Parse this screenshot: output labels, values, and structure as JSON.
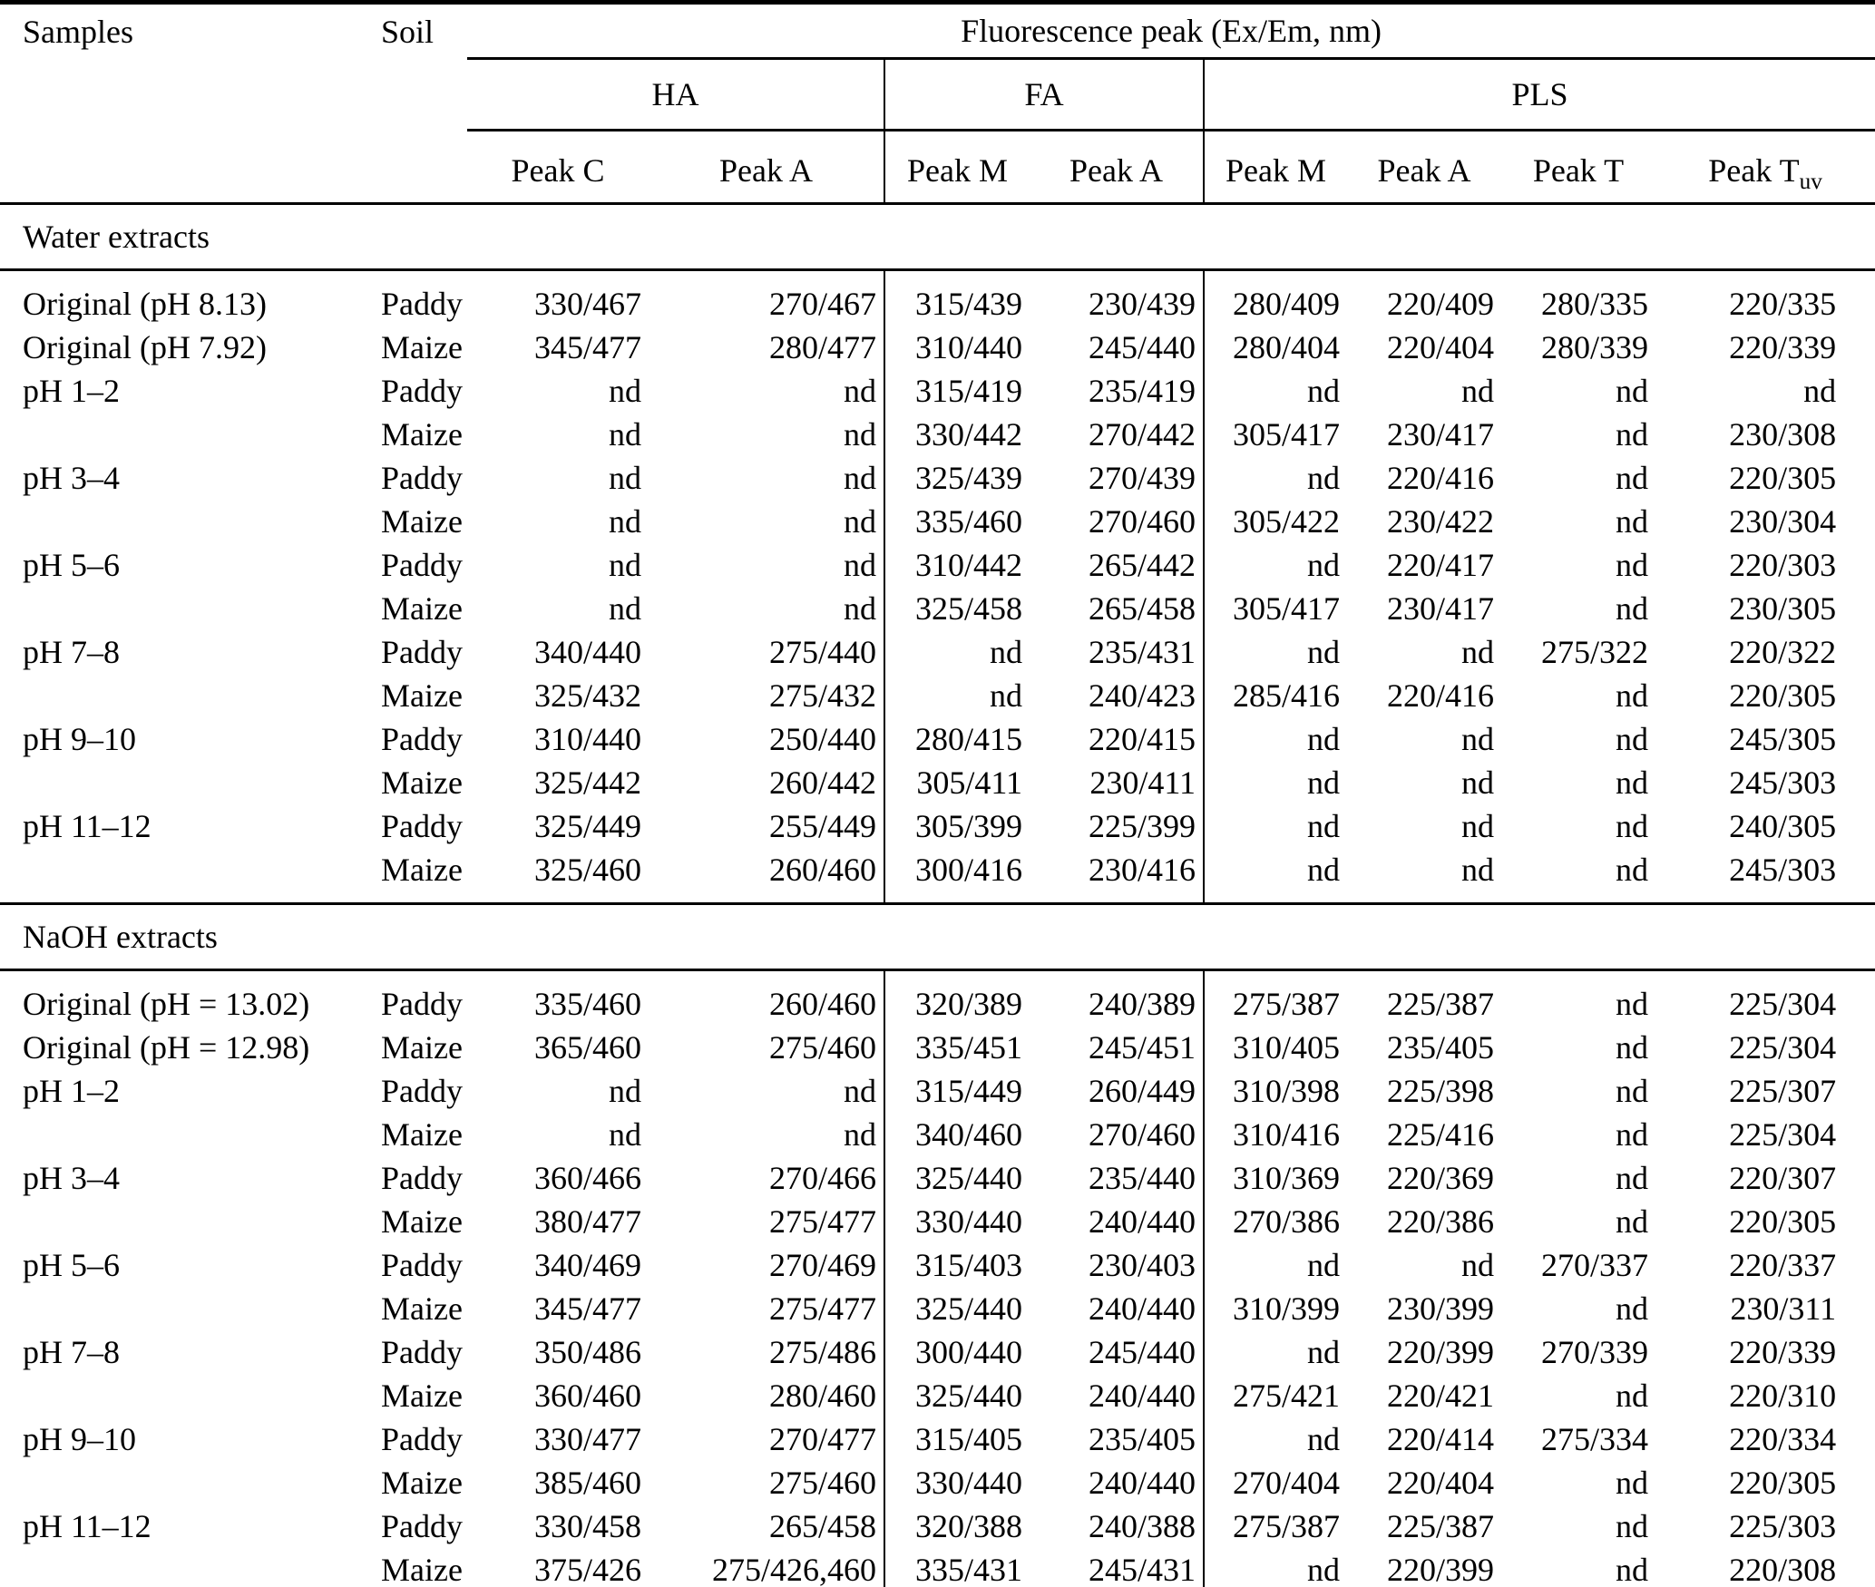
{
  "table": {
    "columns": {
      "samples": "Samples",
      "soil": "Soil",
      "fluorescence": "Fluorescence peak (Ex/Em, nm)"
    },
    "groups": [
      {
        "label": "HA"
      },
      {
        "label": "FA"
      },
      {
        "label": "PLS"
      }
    ],
    "peaks": [
      {
        "label": "Peak C",
        "sub": ""
      },
      {
        "label": "Peak A",
        "sub": ""
      },
      {
        "label": "Peak M",
        "sub": ""
      },
      {
        "label": "Peak A",
        "sub": ""
      },
      {
        "label": "Peak M",
        "sub": ""
      },
      {
        "label": "Peak A",
        "sub": ""
      },
      {
        "label": "Peak T",
        "sub": ""
      },
      {
        "label": "Peak T",
        "sub": "uv"
      }
    ],
    "not_detected_symbol": "nd",
    "text_color": "#000000",
    "background_color": "#ffffff",
    "sections": [
      {
        "label": "Water extracts",
        "rows": [
          {
            "sample": "Original (pH 8.13)",
            "soil": "Paddy",
            "values": [
              "330/467",
              "270/467",
              "315/439",
              "230/439",
              "280/409",
              "220/409",
              "280/335",
              "220/335"
            ]
          },
          {
            "sample": "Original (pH 7.92)",
            "soil": "Maize",
            "values": [
              "345/477",
              "280/477",
              "310/440",
              "245/440",
              "280/404",
              "220/404",
              "280/339",
              "220/339"
            ]
          },
          {
            "sample": "pH 1–2",
            "soil": "Paddy",
            "values": [
              "nd",
              "nd",
              "315/419",
              "235/419",
              "nd",
              "nd",
              "nd",
              "nd"
            ]
          },
          {
            "sample": "",
            "soil": "Maize",
            "values": [
              "nd",
              "nd",
              "330/442",
              "270/442",
              "305/417",
              "230/417",
              "nd",
              "230/308"
            ]
          },
          {
            "sample": "pH 3–4",
            "soil": "Paddy",
            "values": [
              "nd",
              "nd",
              "325/439",
              "270/439",
              "nd",
              "220/416",
              "nd",
              "220/305"
            ]
          },
          {
            "sample": "",
            "soil": "Maize",
            "values": [
              "nd",
              "nd",
              "335/460",
              "270/460",
              "305/422",
              "230/422",
              "nd",
              "230/304"
            ]
          },
          {
            "sample": "pH 5–6",
            "soil": "Paddy",
            "values": [
              "nd",
              "nd",
              "310/442",
              "265/442",
              "nd",
              "220/417",
              "nd",
              "220/303"
            ]
          },
          {
            "sample": "",
            "soil": "Maize",
            "values": [
              "nd",
              "nd",
              "325/458",
              "265/458",
              "305/417",
              "230/417",
              "nd",
              "230/305"
            ]
          },
          {
            "sample": "pH 7–8",
            "soil": "Paddy",
            "values": [
              "340/440",
              "275/440",
              "nd",
              "235/431",
              "nd",
              "nd",
              "275/322",
              "220/322"
            ]
          },
          {
            "sample": "",
            "soil": "Maize",
            "values": [
              "325/432",
              "275/432",
              "nd",
              "240/423",
              "285/416",
              "220/416",
              "nd",
              "220/305"
            ]
          },
          {
            "sample": "pH 9–10",
            "soil": "Paddy",
            "values": [
              "310/440",
              "250/440",
              "280/415",
              "220/415",
              "nd",
              "nd",
              "nd",
              "245/305"
            ]
          },
          {
            "sample": "",
            "soil": "Maize",
            "values": [
              "325/442",
              "260/442",
              "305/411",
              "230/411",
              "nd",
              "nd",
              "nd",
              "245/303"
            ]
          },
          {
            "sample": "pH 11–12",
            "soil": "Paddy",
            "values": [
              "325/449",
              "255/449",
              "305/399",
              "225/399",
              "nd",
              "nd",
              "nd",
              "240/305"
            ]
          },
          {
            "sample": "",
            "soil": "Maize",
            "values": [
              "325/460",
              "260/460",
              "300/416",
              "230/416",
              "nd",
              "nd",
              "nd",
              "245/303"
            ]
          }
        ]
      },
      {
        "label": "NaOH extracts",
        "rows": [
          {
            "sample": "Original (pH = 13.02)",
            "soil": "Paddy",
            "values": [
              "335/460",
              "260/460",
              "320/389",
              "240/389",
              "275/387",
              "225/387",
              "nd",
              "225/304"
            ]
          },
          {
            "sample": "Original (pH = 12.98)",
            "soil": "Maize",
            "values": [
              "365/460",
              "275/460",
              "335/451",
              "245/451",
              "310/405",
              "235/405",
              "nd",
              "225/304"
            ]
          },
          {
            "sample": "pH 1–2",
            "soil": "Paddy",
            "values": [
              "nd",
              "nd",
              "315/449",
              "260/449",
              "310/398",
              "225/398",
              "nd",
              "225/307"
            ]
          },
          {
            "sample": "",
            "soil": "Maize",
            "values": [
              "nd",
              "nd",
              "340/460",
              "270/460",
              "310/416",
              "225/416",
              "nd",
              "225/304"
            ]
          },
          {
            "sample": "pH 3–4",
            "soil": "Paddy",
            "values": [
              "360/466",
              "270/466",
              "325/440",
              "235/440",
              "310/369",
              "220/369",
              "nd",
              "220/307"
            ]
          },
          {
            "sample": "",
            "soil": "Maize",
            "values": [
              "380/477",
              "275/477",
              "330/440",
              "240/440",
              "270/386",
              "220/386",
              "nd",
              "220/305"
            ]
          },
          {
            "sample": "pH 5–6",
            "soil": "Paddy",
            "values": [
              "340/469",
              "270/469",
              "315/403",
              "230/403",
              "nd",
              "nd",
              "270/337",
              "220/337"
            ]
          },
          {
            "sample": "",
            "soil": "Maize",
            "values": [
              "345/477",
              "275/477",
              "325/440",
              "240/440",
              "310/399",
              "230/399",
              "nd",
              "230/311"
            ]
          },
          {
            "sample": "pH 7–8",
            "soil": "Paddy",
            "values": [
              "350/486",
              "275/486",
              "300/440",
              "245/440",
              "nd",
              "220/399",
              "270/339",
              "220/339"
            ]
          },
          {
            "sample": "",
            "soil": "Maize",
            "values": [
              "360/460",
              "280/460",
              "325/440",
              "240/440",
              "275/421",
              "220/421",
              "nd",
              "220/310"
            ]
          },
          {
            "sample": "pH 9–10",
            "soil": "Paddy",
            "values": [
              "330/477",
              "270/477",
              "315/405",
              "235/405",
              "nd",
              "220/414",
              "275/334",
              "220/334"
            ]
          },
          {
            "sample": "",
            "soil": "Maize",
            "values": [
              "385/460",
              "275/460",
              "330/440",
              "240/440",
              "270/404",
              "220/404",
              "nd",
              "220/305"
            ]
          },
          {
            "sample": "pH 11–12",
            "soil": "Paddy",
            "values": [
              "330/458",
              "265/458",
              "320/388",
              "240/388",
              "275/387",
              "225/387",
              "nd",
              "225/303"
            ]
          },
          {
            "sample": "",
            "soil": "Maize",
            "values": [
              "375/426",
              "275/426,460",
              "335/431",
              "245/431",
              "nd",
              "220/399",
              "nd",
              "220/308"
            ]
          }
        ]
      }
    ]
  }
}
